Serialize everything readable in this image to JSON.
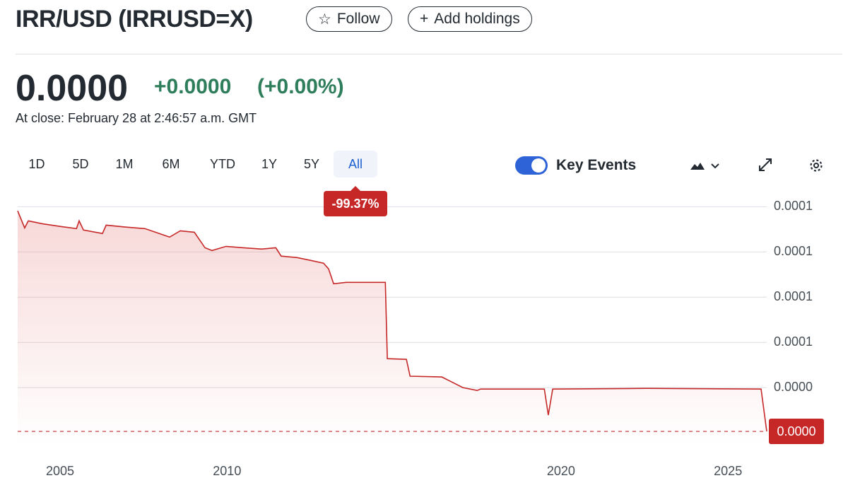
{
  "header": {
    "title": "IRR/USD (IRRUSD=X)",
    "follow": "Follow",
    "add_holdings": "Add holdings"
  },
  "quote": {
    "price": "0.0000",
    "change": "+0.0000",
    "change_percent": "(+0.00%)",
    "close_time": "At close: February 28 at 2:46:57 a.m. GMT"
  },
  "toolbar": {
    "ranges": [
      "1D",
      "5D",
      "1M",
      "6M",
      "YTD",
      "1Y",
      "5Y",
      "All"
    ],
    "selected_range": 7,
    "range_change": "-99.37%",
    "key_events": "Key Events",
    "key_events_on": true
  },
  "chart_data": {
    "type": "area",
    "x": [
      2003.73,
      2003.94,
      2004.05,
      2004.47,
      2005.0,
      2005.49,
      2005.57,
      2005.7,
      2006.27,
      2006.38,
      2007.01,
      2007.54,
      2008.28,
      2008.6,
      2009.02,
      2009.34,
      2009.55,
      2009.97,
      2010.5,
      2011.03,
      2011.46,
      2011.62,
      2012.09,
      2012.51,
      2012.89,
      2013.04,
      2013.19,
      2013.57,
      2014.74,
      2014.8,
      2015.37,
      2015.48,
      2016.43,
      2017.06,
      2017.49,
      2017.59,
      2019.5,
      2019.62,
      2019.75,
      2022.57,
      2025.99,
      2026.16
    ],
    "series": [
      {
        "color": "#c62828",
        "values": [
          0.0001227,
          0.0001133,
          0.0001172,
          0.0001156,
          0.0001141,
          0.0001129,
          0.0001172,
          0.0001121,
          0.0001102,
          0.0001148,
          0.0001137,
          0.0001129,
          0.0001082,
          0.0001117,
          0.0001109,
          0.0001023,
          0.0001008,
          0.0001031,
          0.0001023,
          0.0001016,
          0.0001023,
          9.77e-05,
          9.69e-05,
          9.53e-05,
          9.38e-05,
          9.06e-05,
          8.24e-05,
          8.32e-05,
          8.32e-05,
          4.1e-05,
          4.06e-05,
          3.13e-05,
          3.09e-05,
          2.5e-05,
          2.34e-05,
          2.42e-05,
          2.42e-05,
          9.8e-06,
          2.42e-05,
          2.46e-05,
          2.42e-05,
          8e-07
        ]
      }
    ],
    "xlim": [
      2003.73,
      2026.16
    ],
    "ylim": [
      -7e-06,
      0.000131
    ],
    "xticks": [
      2005,
      2010,
      2020,
      2025
    ],
    "yticks": [
      {
        "value": 0.000125,
        "label": "0.0001"
      },
      {
        "value": 0.0001,
        "label": "0.0001"
      },
      {
        "value": 7.5e-05,
        "label": "0.0001"
      },
      {
        "value": 5e-05,
        "label": "0.0001"
      },
      {
        "value": 2.5e-05,
        "label": "0.0000"
      }
    ],
    "grid": true,
    "last_value": 8e-07,
    "last_label": "0.0000"
  }
}
